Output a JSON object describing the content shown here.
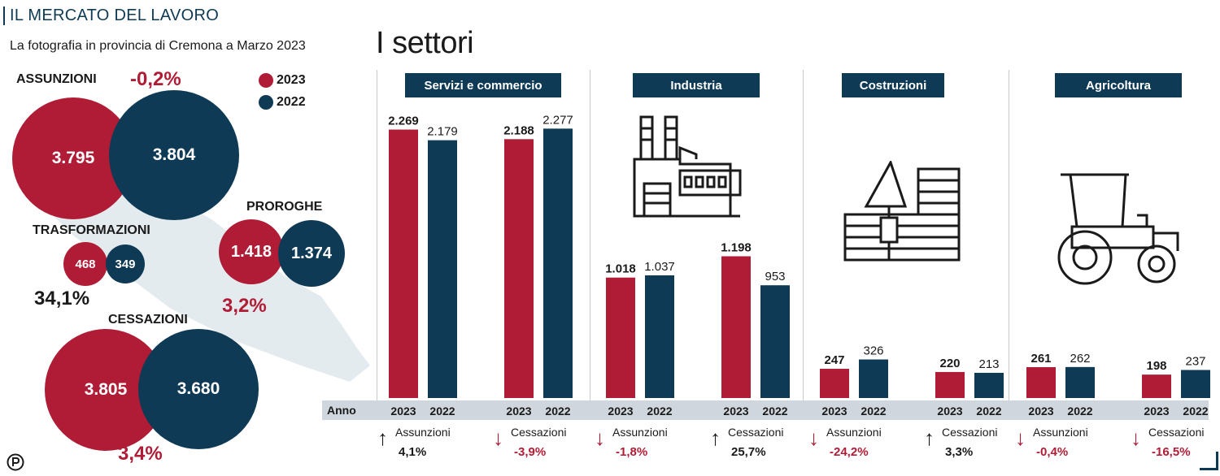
{
  "header": {
    "title": "IL MERCATO DEL LAVORO",
    "subtitle": "La fotografia in provincia di Cremona a Marzo 2023",
    "sectors_title": "I settori"
  },
  "legend": {
    "items": [
      {
        "label": "2023",
        "color": "#b01c35"
      },
      {
        "label": "2022",
        "color": "#0e3a55"
      }
    ]
  },
  "overview": {
    "assunzioni": {
      "label": "ASSUNZIONI",
      "change": "-0,2%",
      "v2023": "3.795",
      "v2022": "3.804"
    },
    "trasformazioni": {
      "label": "TRASFORMAZIONI",
      "change": "34,1%",
      "v2023": "468",
      "v2022": "349"
    },
    "proroghe": {
      "label": "PROROGHE",
      "change": "3,2%",
      "v2023": "1.418",
      "v2022": "1.374"
    },
    "cessazioni": {
      "label": "CESSAZIONI",
      "change": "3,4%",
      "v2023": "3.805",
      "v2022": "3.680"
    }
  },
  "year_strip": {
    "label": "Anno"
  },
  "chart_data": {
    "type": "bar",
    "title": "I settori",
    "series": [
      {
        "name": "2023",
        "color": "#b01c35"
      },
      {
        "name": "2022",
        "color": "#0e3a55"
      }
    ],
    "ylim": [
      0,
      2300
    ],
    "sectors": [
      {
        "name": "Servizi e commercio",
        "groups": [
          {
            "metric": "Assunzioni",
            "v2023": 2269,
            "v2022": 2179,
            "l2023": "2.269",
            "l2022": "2.179",
            "change": "4,1%",
            "direction": "up"
          },
          {
            "metric": "Cessazioni",
            "v2023": 2188,
            "v2022": 2277,
            "l2023": "2.188",
            "l2022": "2.277",
            "change": "-3,9%",
            "direction": "down"
          }
        ]
      },
      {
        "name": "Industria",
        "groups": [
          {
            "metric": "Assunzioni",
            "v2023": 1018,
            "v2022": 1037,
            "l2023": "1.018",
            "l2022": "1.037",
            "change": "-1,8%",
            "direction": "down"
          },
          {
            "metric": "Cessazioni",
            "v2023": 1198,
            "v2022": 953,
            "l2023": "1.198",
            "l2022": "953",
            "change": "25,7%",
            "direction": "up"
          }
        ]
      },
      {
        "name": "Costruzioni",
        "groups": [
          {
            "metric": "Assunzioni",
            "v2023": 247,
            "v2022": 326,
            "l2023": "247",
            "l2022": "326",
            "change": "-24,2%",
            "direction": "down"
          },
          {
            "metric": "Cessazioni",
            "v2023": 220,
            "v2022": 213,
            "l2023": "220",
            "l2022": "213",
            "change": "3,3%",
            "direction": "up"
          }
        ]
      },
      {
        "name": "Agricoltura",
        "groups": [
          {
            "metric": "Assunzioni",
            "v2023": 261,
            "v2022": 262,
            "l2023": "261",
            "l2022": "262",
            "change": "-0,4%",
            "direction": "down"
          },
          {
            "metric": "Cessazioni",
            "v2023": 198,
            "v2022": 237,
            "l2023": "198",
            "l2022": "237",
            "change": "-16,5%",
            "direction": "down"
          }
        ]
      }
    ]
  },
  "icons": [
    "factory-icon",
    "construction-icon",
    "tractor-icon",
    "publisher-logo-icon"
  ]
}
